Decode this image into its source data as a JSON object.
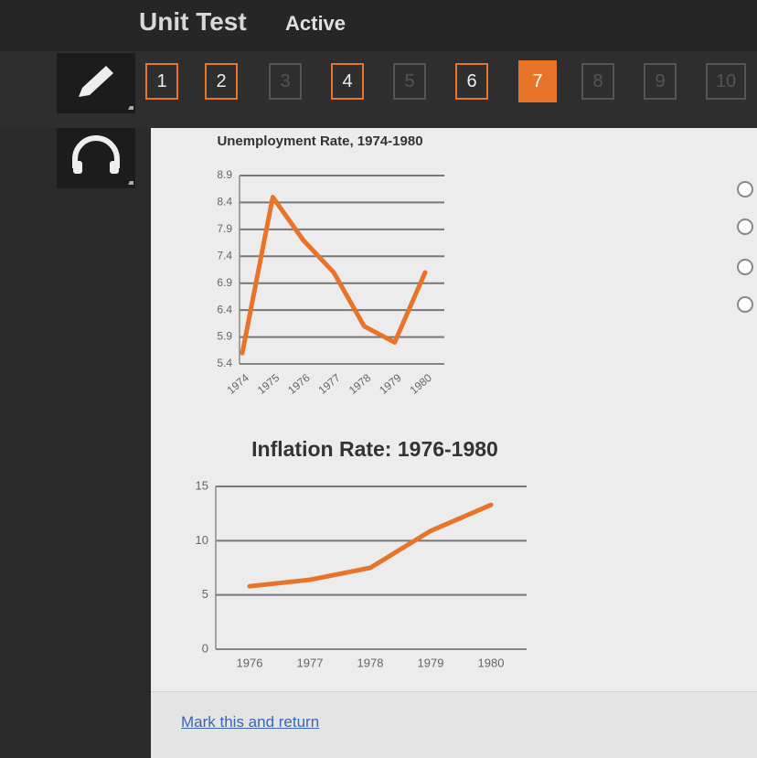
{
  "header": {
    "title": "Unit Test",
    "status": "Active"
  },
  "nav": [
    "1",
    "2",
    "3",
    "4",
    "5",
    "6",
    "7",
    "8",
    "9",
    "10"
  ],
  "chart_data": [
    {
      "type": "line",
      "title": "Unemployment Rate, 1974-1980",
      "categories": [
        "1974",
        "1975",
        "1976",
        "1977",
        "1978",
        "1979",
        "1980"
      ],
      "values": [
        5.6,
        8.5,
        7.7,
        7.1,
        6.1,
        5.8,
        7.1
      ],
      "color": "#e8742a",
      "ylim": [
        5.4,
        8.9
      ],
      "yticks": [
        5.4,
        5.9,
        6.4,
        6.9,
        7.4,
        7.9,
        8.4,
        8.9
      ],
      "grid": true
    },
    {
      "type": "line",
      "title": "Inflation Rate: 1976-1980",
      "categories": [
        "1976",
        "1977",
        "1978",
        "1979",
        "1980"
      ],
      "values": [
        5.8,
        6.4,
        7.5,
        10.9,
        13.3
      ],
      "color": "#e8742a",
      "ylim": [
        0,
        15
      ],
      "yticks": [
        0,
        5,
        10,
        15
      ],
      "grid": true
    }
  ],
  "footer": {
    "link": "Mark this and return"
  }
}
